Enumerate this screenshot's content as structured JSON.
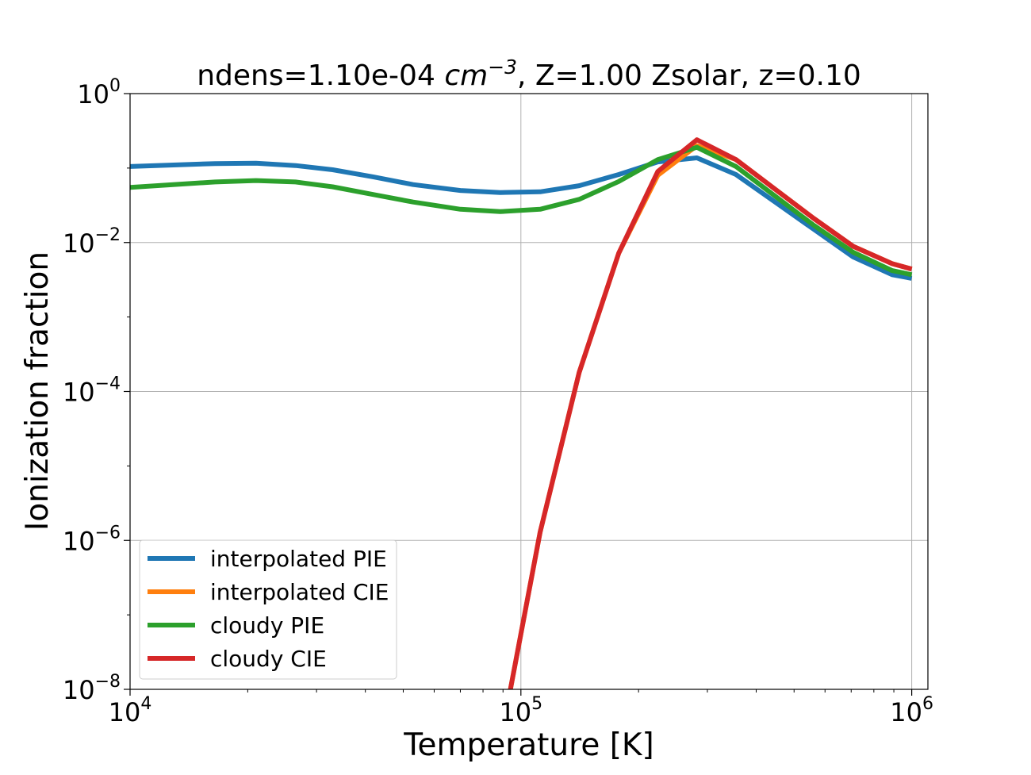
{
  "chart_data": {
    "type": "line",
    "title": {
      "prefix": "ndens=1.10e-04 ",
      "unit_base": "cm",
      "unit_exp": "−3",
      "suffix": ", Z=1.00 Zsolar, z=0.10"
    },
    "xlabel": "Temperature [K]",
    "ylabel": "Ionization fraction",
    "xscale": "log",
    "yscale": "log",
    "xlim": [
      10000,
      1100000
    ],
    "ylim": [
      1e-08,
      1
    ],
    "grid": true,
    "legend_position": "lower left",
    "x_ticks": [
      {
        "value": 10000,
        "base": "10",
        "exp": "4"
      },
      {
        "value": 100000,
        "base": "10",
        "exp": "5"
      },
      {
        "value": 1000000,
        "base": "10",
        "exp": "6"
      }
    ],
    "y_ticks": [
      {
        "value": 1,
        "base": "10",
        "exp": "0"
      },
      {
        "value": 0.01,
        "base": "10",
        "exp": "−2"
      },
      {
        "value": 0.0001,
        "base": "10",
        "exp": "−4"
      },
      {
        "value": 1e-06,
        "base": "10",
        "exp": "−6"
      },
      {
        "value": 1e-08,
        "base": "10",
        "exp": "−8"
      }
    ],
    "series": [
      {
        "name": "interpolated PIE",
        "color": "#1f77b4",
        "x": [
          10000,
          16500,
          21000,
          26500,
          33000,
          42000,
          53000,
          70000,
          88500,
          112000,
          141000,
          178000,
          224000,
          282000,
          355000,
          447000,
          562000,
          708000,
          891000,
          1000000
        ],
        "y": [
          0.105,
          0.115,
          0.116,
          0.108,
          0.095,
          0.076,
          0.06,
          0.05,
          0.047,
          0.048,
          0.058,
          0.082,
          0.121,
          0.137,
          0.082,
          0.035,
          0.015,
          0.0064,
          0.0037,
          0.0033
        ]
      },
      {
        "name": "interpolated CIE",
        "color": "#ff7f0e",
        "x": [
          94000,
          112000,
          141000,
          178000,
          224000,
          282000,
          355000,
          447000,
          562000,
          708000,
          891000,
          1000000
        ],
        "y": [
          1e-08,
          1.3e-06,
          0.00018,
          0.0072,
          0.08,
          0.2,
          0.13,
          0.052,
          0.021,
          0.0089,
          0.0052,
          0.0044
        ]
      },
      {
        "name": "cloudy PIE",
        "color": "#2ca02c",
        "x": [
          10000,
          16500,
          21000,
          26500,
          33000,
          42000,
          53000,
          70000,
          88500,
          112000,
          141000,
          178000,
          224000,
          282000,
          355000,
          447000,
          562000,
          708000,
          891000,
          1000000
        ],
        "y": [
          0.055,
          0.065,
          0.068,
          0.065,
          0.056,
          0.044,
          0.035,
          0.028,
          0.026,
          0.028,
          0.038,
          0.066,
          0.13,
          0.19,
          0.105,
          0.042,
          0.017,
          0.0074,
          0.0042,
          0.0037
        ]
      },
      {
        "name": "cloudy CIE",
        "color": "#d62728",
        "x": [
          94000,
          112000,
          141000,
          178000,
          224000,
          282000,
          355000,
          447000,
          562000,
          708000,
          891000,
          1000000
        ],
        "y": [
          1e-08,
          1.3e-06,
          0.00018,
          0.0072,
          0.09,
          0.24,
          0.13,
          0.052,
          0.021,
          0.0089,
          0.0052,
          0.0044
        ]
      }
    ]
  }
}
